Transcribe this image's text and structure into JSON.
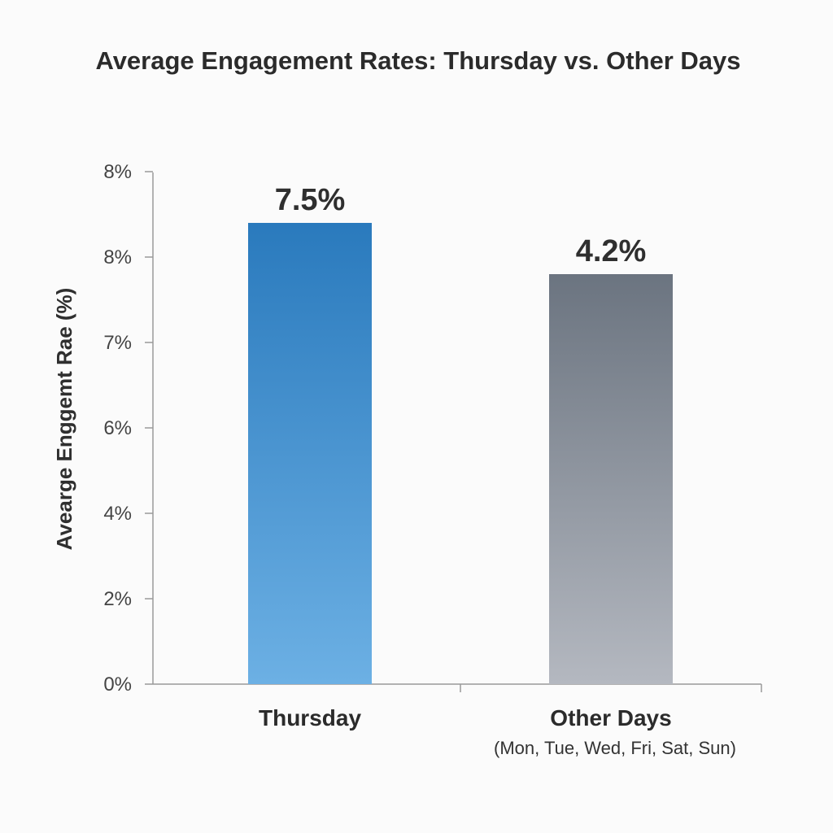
{
  "chart_data": {
    "type": "bar",
    "title": "Average Engagement Rates: Thursday vs. Other Days",
    "ylabel": "Avearge Enggemt Rae (%)",
    "xlabel": "",
    "categories": [
      "Thursday",
      "Other Days"
    ],
    "category_sublabels": [
      "",
      "(Mon, Tue, Wed, Fri, Sat, Sun)"
    ],
    "values": [
      7.5,
      4.2
    ],
    "data_labels": [
      "7.5%",
      "4.2%"
    ],
    "y_tick_labels": [
      "0%",
      "2%",
      "4%",
      "6%",
      "7%",
      "8%",
      "8%"
    ],
    "bar_fill_fractions": [
      0.9,
      0.8
    ],
    "ylim": [
      0,
      8
    ],
    "grid": false,
    "legend": "none",
    "colors": {
      "thursday_top": "#2a7abd",
      "thursday_bottom": "#6cb0e4",
      "other_top": "#6b7480",
      "other_bottom": "#b4b8c0",
      "text": "#2b2b2b",
      "axis": "#9a9a9a"
    }
  }
}
